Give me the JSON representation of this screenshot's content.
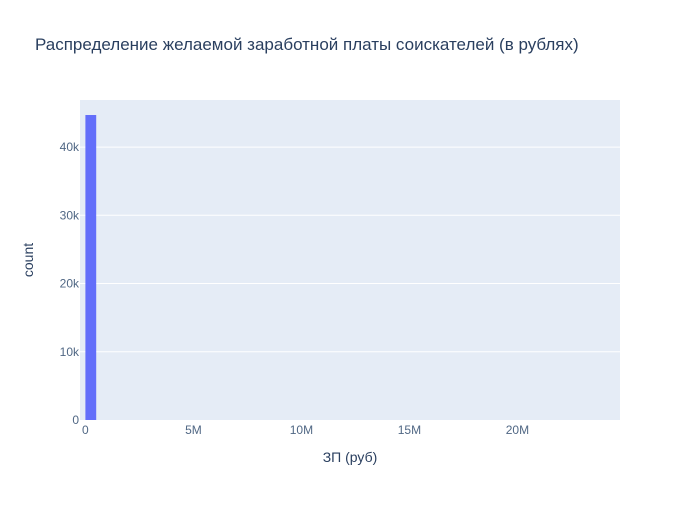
{
  "chart_data": {
    "type": "bar",
    "title": "Распределение желаемой заработной платы соискателей (в рублях)",
    "xlabel": "ЗП (руб)",
    "ylabel": "count",
    "bins": [
      {
        "x0": 0,
        "x1": 500000,
        "count": 44700
      }
    ],
    "xlim": [
      -250000,
      24750000
    ],
    "ylim": [
      0,
      46900
    ],
    "x_ticks": [
      {
        "value": 0,
        "label": "0"
      },
      {
        "value": 5000000,
        "label": "5M"
      },
      {
        "value": 10000000,
        "label": "10M"
      },
      {
        "value": 15000000,
        "label": "15M"
      },
      {
        "value": 20000000,
        "label": "20M"
      }
    ],
    "y_ticks": [
      {
        "value": 0,
        "label": "0"
      },
      {
        "value": 10000,
        "label": "10k"
      },
      {
        "value": 20000,
        "label": "20k"
      },
      {
        "value": 30000,
        "label": "30k"
      },
      {
        "value": 40000,
        "label": "40k"
      }
    ],
    "grid": true,
    "colors": {
      "bar": "#636efa",
      "plot_bg": "#e5ecf6",
      "grid": "#ffffff",
      "text": "#2a3f5f",
      "tick_text": "#506784"
    }
  }
}
